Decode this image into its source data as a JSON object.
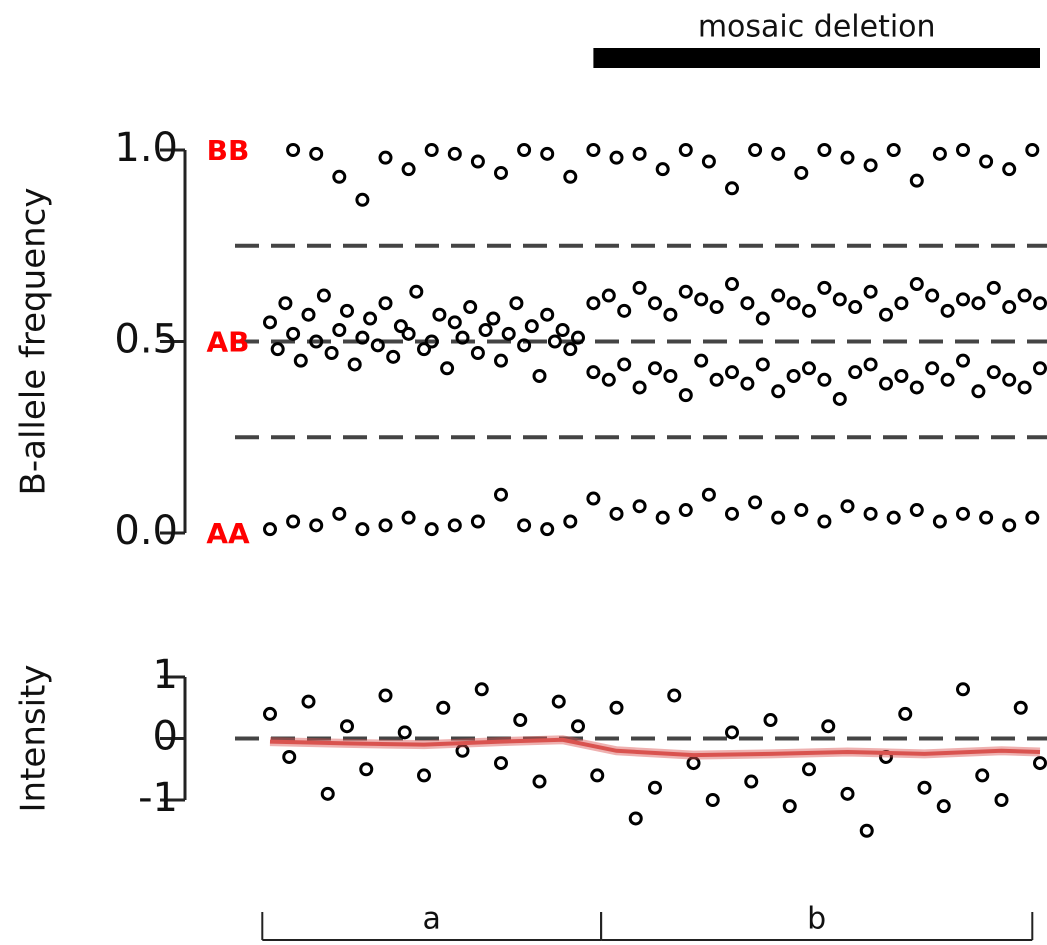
{
  "chart_data": [
    {
      "type": "scatter",
      "ylabel": "B-allele frequency",
      "xlim": [
        0,
        100
      ],
      "ylim": [
        0,
        1
      ],
      "yticks": [
        {
          "value": 0,
          "label": "0.0"
        },
        {
          "value": 0.5,
          "label": "0.5"
        },
        {
          "value": 1,
          "label": "1.0"
        }
      ],
      "hlines": [
        0.25,
        0.5,
        0.75
      ],
      "region": {
        "label": "mosaic deletion",
        "xrange": [
          42,
          100
        ]
      },
      "annotations": [
        {
          "text": "BB",
          "y": 1
        },
        {
          "text": "AB",
          "y": 0.5
        },
        {
          "text": "AA",
          "y": 0
        }
      ],
      "annotation_color": "#ff0000",
      "series": [
        {
          "color": "#000000",
          "x": [
            3,
            6,
            9,
            12,
            15,
            18,
            21,
            24,
            27,
            30,
            33,
            36,
            39,
            42,
            45,
            48,
            51,
            54,
            57,
            60,
            63,
            66,
            69,
            72,
            75,
            78,
            81,
            84,
            87,
            90,
            93,
            96,
            99
          ],
          "values": [
            1,
            0.99,
            0.93,
            0.87,
            0.98,
            0.95,
            1,
            0.99,
            0.97,
            0.94,
            1,
            0.99,
            0.93,
            1,
            0.98,
            0.99,
            0.95,
            1,
            0.97,
            0.9,
            1,
            0.99,
            0.94,
            1,
            0.98,
            0.96,
            1,
            0.92,
            0.99,
            1,
            0.97,
            0.95,
            1
          ]
        },
        {
          "color": "#000000",
          "x": [
            0,
            1,
            2,
            3,
            4,
            5,
            6,
            7,
            8,
            9,
            10,
            11,
            12,
            13,
            14,
            15,
            16,
            17,
            18,
            19,
            20,
            21,
            22,
            23,
            24,
            25,
            26,
            27,
            28,
            29,
            30,
            31,
            32,
            33,
            34,
            35,
            36,
            37,
            38,
            39,
            40
          ],
          "values": [
            0.55,
            0.48,
            0.6,
            0.52,
            0.45,
            0.57,
            0.5,
            0.62,
            0.47,
            0.53,
            0.58,
            0.44,
            0.51,
            0.56,
            0.49,
            0.6,
            0.46,
            0.54,
            0.52,
            0.63,
            0.48,
            0.5,
            0.57,
            0.43,
            0.55,
            0.51,
            0.59,
            0.47,
            0.53,
            0.56,
            0.45,
            0.52,
            0.6,
            0.49,
            0.54,
            0.41,
            0.57,
            0.5,
            0.53,
            0.48,
            0.51
          ]
        },
        {
          "color": "#000000",
          "x": [
            42,
            44,
            46,
            48,
            50,
            52,
            54,
            56,
            58,
            60,
            62,
            64,
            66,
            68,
            70,
            72,
            74,
            76,
            78,
            80,
            82,
            84,
            86,
            88,
            90,
            92,
            94,
            96,
            98,
            100
          ],
          "values": [
            0.6,
            0.62,
            0.58,
            0.64,
            0.6,
            0.57,
            0.63,
            0.61,
            0.59,
            0.65,
            0.6,
            0.56,
            0.62,
            0.6,
            0.58,
            0.64,
            0.61,
            0.59,
            0.63,
            0.57,
            0.6,
            0.65,
            0.62,
            0.58,
            0.61,
            0.6,
            0.64,
            0.59,
            0.62,
            0.6
          ]
        },
        {
          "color": "#000000",
          "x": [
            42,
            44,
            46,
            48,
            50,
            52,
            54,
            56,
            58,
            60,
            62,
            64,
            66,
            68,
            70,
            72,
            74,
            76,
            78,
            80,
            82,
            84,
            86,
            88,
            90,
            92,
            94,
            96,
            98,
            100
          ],
          "values": [
            0.42,
            0.4,
            0.44,
            0.38,
            0.43,
            0.41,
            0.36,
            0.45,
            0.4,
            0.42,
            0.39,
            0.44,
            0.37,
            0.41,
            0.43,
            0.4,
            0.35,
            0.42,
            0.44,
            0.39,
            0.41,
            0.38,
            0.43,
            0.4,
            0.45,
            0.37,
            0.42,
            0.4,
            0.38,
            0.43
          ]
        },
        {
          "color": "#000000",
          "x": [
            0,
            3,
            6,
            9,
            12,
            15,
            18,
            21,
            24,
            27,
            30,
            33,
            36,
            39,
            42,
            45,
            48,
            51,
            54,
            57,
            60,
            63,
            66,
            69,
            72,
            75,
            78,
            81,
            84,
            87,
            90,
            93,
            96,
            99
          ],
          "values": [
            0.01,
            0.03,
            0.02,
            0.05,
            0.01,
            0.02,
            0.04,
            0.01,
            0.02,
            0.03,
            0.1,
            0.02,
            0.01,
            0.03,
            0.09,
            0.05,
            0.07,
            0.04,
            0.06,
            0.1,
            0.05,
            0.08,
            0.04,
            0.06,
            0.03,
            0.07,
            0.05,
            0.04,
            0.06,
            0.03,
            0.05,
            0.04,
            0.02,
            0.04
          ]
        }
      ]
    },
    {
      "type": "scatter",
      "ylabel": "Intensity",
      "xlim": [
        0,
        100
      ],
      "ylim": [
        -1,
        1
      ],
      "yticks": [
        -1,
        0,
        1
      ],
      "hlines": [
        0
      ],
      "segments": [
        {
          "label": "a",
          "xrange": [
            -1,
            43
          ]
        },
        {
          "label": "b",
          "xrange": [
            43,
            99
          ]
        }
      ],
      "series": [
        {
          "color": "#000000",
          "x": [
            0,
            2.5,
            5,
            7.5,
            10,
            12.5,
            15,
            17.5,
            20,
            22.5,
            25,
            27.5,
            30,
            32.5,
            35,
            37.5,
            40,
            42.5,
            45,
            47.5,
            50,
            52.5,
            55,
            57.5,
            60,
            62.5,
            65,
            67.5,
            70,
            72.5,
            75,
            77.5,
            80,
            82.5,
            85,
            87.5,
            90,
            92.5,
            95,
            97.5,
            100
          ],
          "values": [
            0.4,
            -0.3,
            0.6,
            -0.9,
            0.2,
            -0.5,
            0.7,
            0.1,
            -0.6,
            0.5,
            -0.2,
            0.8,
            -0.4,
            0.3,
            -0.7,
            0.6,
            0.2,
            -0.6,
            0.5,
            -1.3,
            -0.8,
            0.7,
            -0.4,
            -1.0,
            0.1,
            -0.7,
            0.3,
            -1.1,
            -0.5,
            0.2,
            -0.9,
            -1.5,
            -0.3,
            0.4,
            -0.8,
            -1.1,
            0.8,
            -0.6,
            -1.0,
            0.5,
            -0.4
          ]
        },
        {
          "type": "line",
          "color": "#d9534f",
          "x": [
            0,
            10,
            20,
            30,
            38,
            45,
            55,
            65,
            75,
            85,
            95,
            100
          ],
          "values": [
            -0.05,
            -0.08,
            -0.1,
            -0.05,
            -0.02,
            -0.2,
            -0.27,
            -0.25,
            -0.22,
            -0.25,
            -0.2,
            -0.22
          ]
        }
      ]
    }
  ]
}
